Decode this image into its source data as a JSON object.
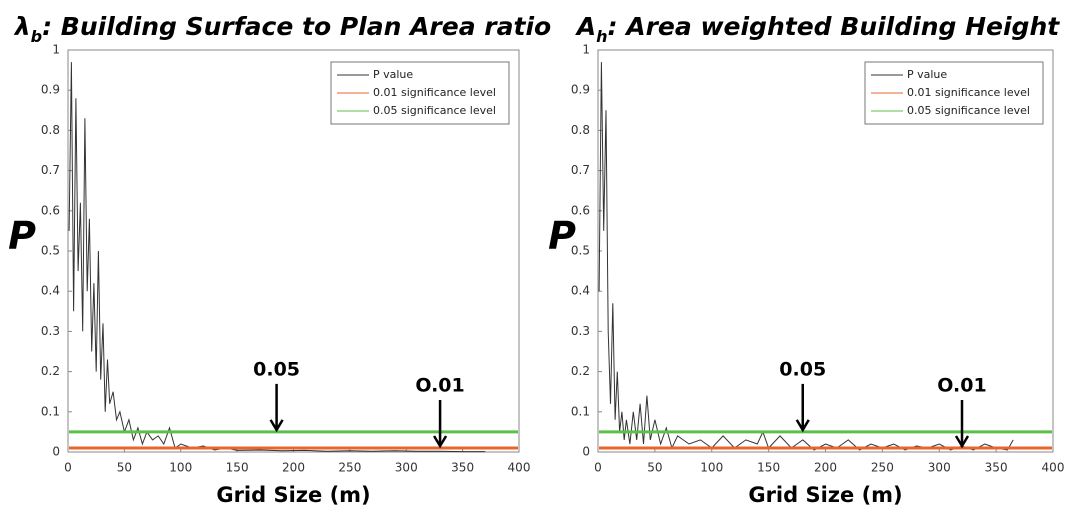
{
  "chart_data": [
    {
      "type": "line",
      "title": {
        "symbol": "λ",
        "subscript": "b",
        "text": ": Building Surface to Plan Area ratio"
      },
      "y_label": "P",
      "x_label": "Grid Size (m)",
      "xlim": [
        0,
        400
      ],
      "ylim": [
        0,
        1
      ],
      "xticks": [
        0,
        50,
        100,
        150,
        200,
        250,
        300,
        350,
        400
      ],
      "yticks": [
        0,
        0.1,
        0.2,
        0.3,
        0.4,
        0.5,
        0.6,
        0.7,
        0.8,
        0.9,
        1
      ],
      "legend": "upper right",
      "series": [
        {
          "name": "P value",
          "color": "#333333",
          "x": [
            1,
            3,
            5,
            7,
            9,
            11,
            13,
            15,
            17,
            19,
            21,
            23,
            25,
            27,
            29,
            31,
            33,
            35,
            37,
            40,
            43,
            46,
            50,
            54,
            58,
            62,
            66,
            70,
            75,
            80,
            85,
            90,
            95,
            100,
            110,
            120,
            130,
            140,
            150,
            170,
            190,
            210,
            230,
            250,
            270,
            290,
            310,
            330,
            350,
            370
          ],
          "values": [
            0.55,
            0.97,
            0.35,
            0.88,
            0.45,
            0.62,
            0.3,
            0.83,
            0.4,
            0.58,
            0.25,
            0.42,
            0.2,
            0.5,
            0.18,
            0.32,
            0.1,
            0.23,
            0.12,
            0.15,
            0.08,
            0.1,
            0.05,
            0.08,
            0.03,
            0.06,
            0.02,
            0.05,
            0.03,
            0.04,
            0.02,
            0.06,
            0.01,
            0.02,
            0.01,
            0.015,
            0.005,
            0.01,
            0.004,
            0.005,
            0.003,
            0.004,
            0.002,
            0.003,
            0.002,
            0.003,
            0.002,
            0.002,
            0.001,
            0.001
          ]
        },
        {
          "name": "0.01 significance level",
          "color": "#e8652e",
          "value": 0.01
        },
        {
          "name": "0.05 significance level",
          "color": "#5cbf4a",
          "value": 0.05
        }
      ],
      "annotations": [
        {
          "text": "0.05",
          "x": 185
        },
        {
          "text": "O.01",
          "x": 330
        }
      ]
    },
    {
      "type": "line",
      "title": {
        "symbol": "A",
        "subscript": "h",
        "text": ": Area weighted Building Height"
      },
      "y_label": "P",
      "x_label": "Grid Size (m)",
      "xlim": [
        0,
        400
      ],
      "ylim": [
        0,
        1
      ],
      "xticks": [
        0,
        50,
        100,
        150,
        200,
        250,
        300,
        350,
        400
      ],
      "yticks": [
        0,
        0.1,
        0.2,
        0.3,
        0.4,
        0.5,
        0.6,
        0.7,
        0.8,
        0.9,
        1
      ],
      "legend": "upper right",
      "series": [
        {
          "name": "P value",
          "color": "#333333",
          "x": [
            1,
            3,
            5,
            7,
            9,
            11,
            13,
            15,
            17,
            19,
            21,
            23,
            25,
            28,
            31,
            34,
            37,
            40,
            43,
            46,
            50,
            55,
            60,
            65,
            70,
            80,
            90,
            100,
            110,
            120,
            130,
            140,
            145,
            150,
            160,
            170,
            180,
            190,
            200,
            210,
            220,
            230,
            240,
            250,
            260,
            270,
            280,
            290,
            300,
            310,
            320,
            330,
            340,
            350,
            360,
            365
          ],
          "values": [
            0.4,
            0.97,
            0.55,
            0.85,
            0.3,
            0.12,
            0.37,
            0.08,
            0.2,
            0.05,
            0.1,
            0.03,
            0.08,
            0.02,
            0.1,
            0.03,
            0.12,
            0.02,
            0.14,
            0.03,
            0.08,
            0.02,
            0.06,
            0.01,
            0.04,
            0.02,
            0.03,
            0.01,
            0.04,
            0.01,
            0.03,
            0.02,
            0.05,
            0.01,
            0.04,
            0.01,
            0.03,
            0.005,
            0.02,
            0.01,
            0.03,
            0.005,
            0.02,
            0.01,
            0.02,
            0.005,
            0.015,
            0.01,
            0.02,
            0.005,
            0.015,
            0.005,
            0.02,
            0.01,
            0.005,
            0.03
          ]
        },
        {
          "name": "0.01 significance level",
          "color": "#e8652e",
          "value": 0.01
        },
        {
          "name": "0.05 significance level",
          "color": "#5cbf4a",
          "value": 0.05
        }
      ],
      "annotations": [
        {
          "text": "0.05",
          "x": 180
        },
        {
          "text": "O.01",
          "x": 320
        }
      ]
    }
  ]
}
